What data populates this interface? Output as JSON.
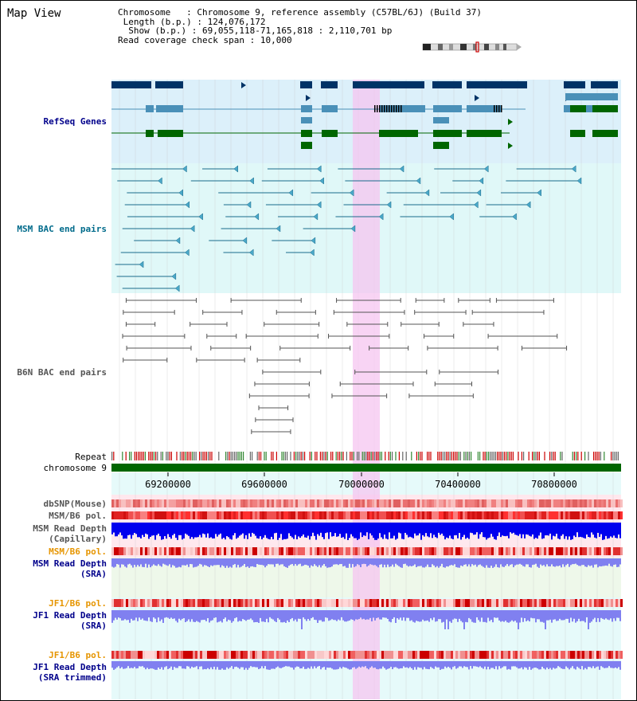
{
  "title": "Map View",
  "info": {
    "chromosome_label": "Chromosome",
    "chromosome_value": "Chromosome 9, reference assembly (C57BL/6J) (Build 37)",
    "length_label": "Length (b.p.)",
    "length_value": "124,076,172",
    "show_label": "Show (b.p.)",
    "show_value": "69,055,118-71,165,818 : 2,110,701 bp",
    "coverage_label": "Read coverage check span",
    "coverage_value": "10,000"
  },
  "tracks": {
    "refseq": "RefSeq Genes",
    "msm_bac": "MSM BAC end pairs",
    "b6n_bac": "B6N BAC end pairs",
    "repeat": "Repeat",
    "chromosome": "chromosome 9",
    "dbsnp": "dbSNP(Mouse)",
    "msm_pol1": "MSM/B6 pol.",
    "msm_depth_cap_1": "MSM Read Depth",
    "msm_depth_cap_2": "(Capillary)",
    "msm_pol2": "MSM/B6 pol.",
    "msm_depth_sra_1": "MSM Read Depth",
    "msm_depth_sra_2": "(SRA)",
    "jf1_pol1": "JF1/B6 pol.",
    "jf1_depth_sra_1": "JF1 Read Depth",
    "jf1_depth_sra_2": "(SRA)",
    "jf1_pol2": "JF1/B6 pol.",
    "jf1_depth_trim_1": "JF1 Read Depth",
    "jf1_depth_trim_2": "(SRA trimmed)"
  },
  "axis": {
    "ticks": [
      "69200000",
      "69600000",
      "70000000",
      "70400000",
      "70800000"
    ]
  },
  "colors": {
    "refseq_dark": "#003366",
    "refseq_mid": "#4a90b8",
    "refseq_green": "#006600",
    "msm_line": "#1a6b8c",
    "b6n_line": "#555555",
    "highlight": "#f5c6f0",
    "depth_dark": "#0000ee",
    "depth_light": "#8080f0",
    "label_blue": "#00008b",
    "label_teal": "#006b8b",
    "label_orange": "#e69500"
  }
}
